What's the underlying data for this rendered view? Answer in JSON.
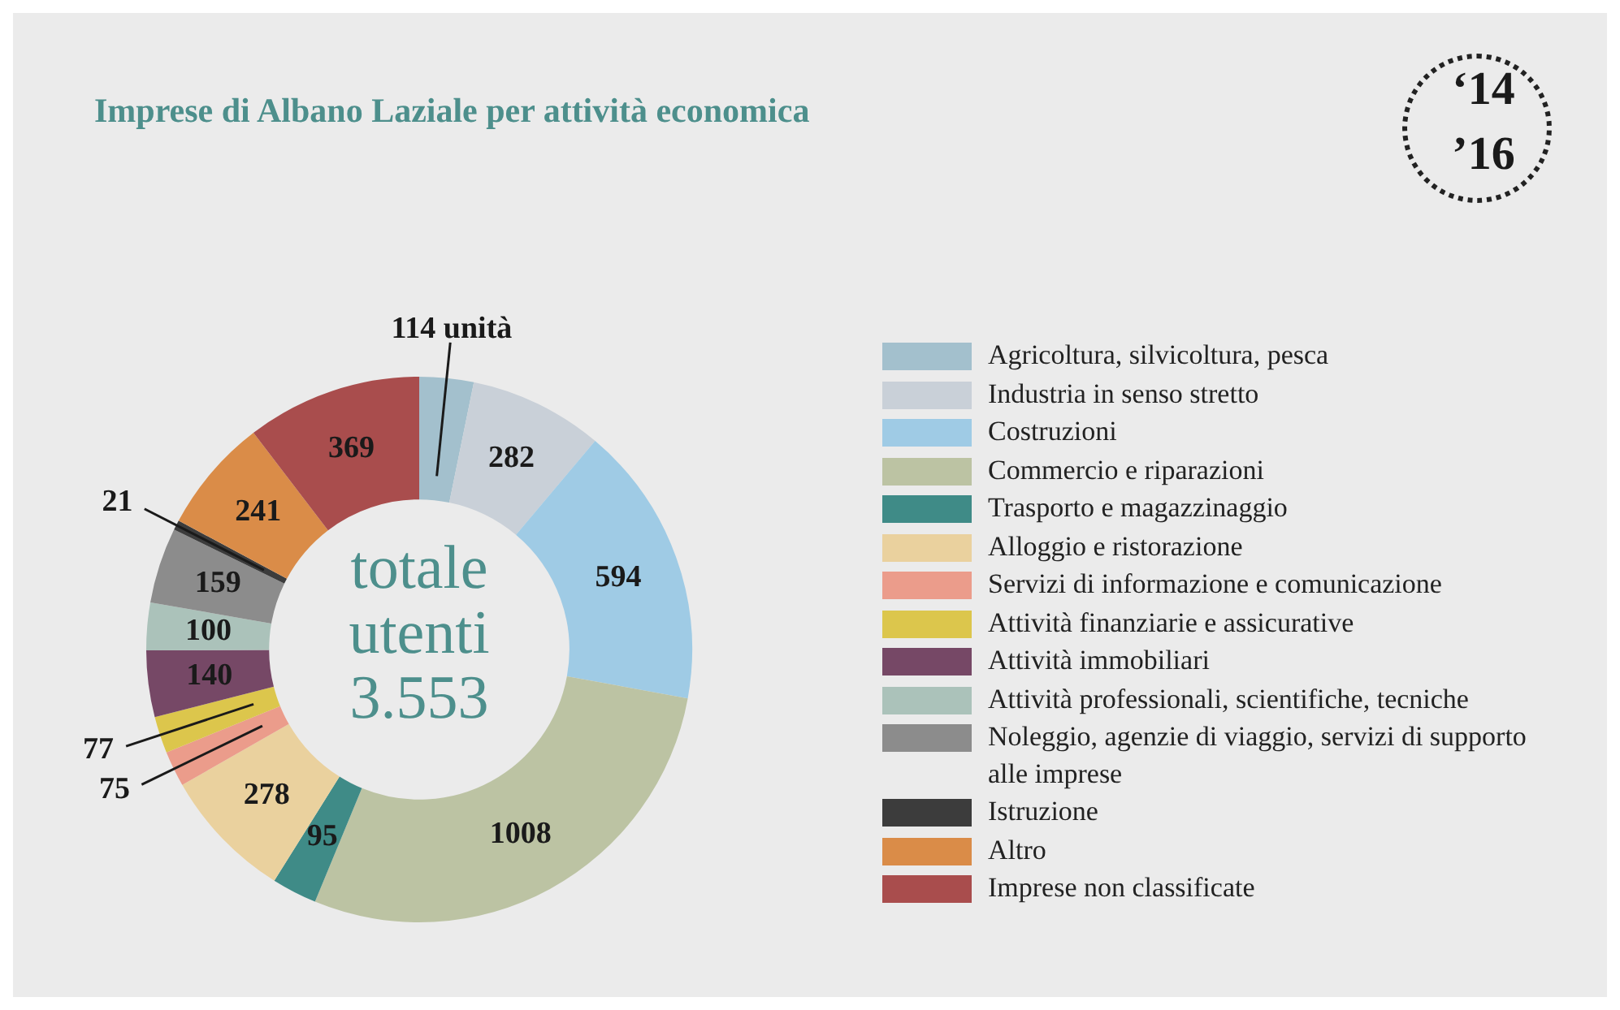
{
  "chart_data": {
    "type": "donut",
    "title": "Imprese di Albano Laziale per attività economica",
    "categories": [
      "Agricoltura, silvicoltura, pesca",
      "Industria in senso stretto",
      "Costruzioni",
      "Commercio e riparazioni",
      "Trasporto e magazzinaggio",
      "Alloggio e ristorazione",
      "Servizi di informazione e comunicazione",
      "Attività finanziarie e assicurative",
      "Attività immobiliari",
      "Attività professionali, scientifiche, tecniche",
      "Noleggio, agenzie di viaggio, servizi di supporto alle imprese",
      "Istruzione",
      "Altro",
      "Imprese non classificate"
    ],
    "values": [
      114,
      282,
      594,
      1008,
      95,
      278,
      75,
      77,
      140,
      100,
      159,
      21,
      241,
      369
    ],
    "value_labels": [
      "114 unità",
      "282",
      "594",
      "1008",
      "95",
      "278",
      "75",
      "77",
      "140",
      "100",
      "159",
      "21",
      "241",
      "369"
    ],
    "colors": [
      "#a3c0cd",
      "#c9d0d8",
      "#9fcbe5",
      "#bcc3a3",
      "#3f8b87",
      "#ead19e",
      "#eb9c8b",
      "#dcc64c",
      "#764866",
      "#abc2ba",
      "#8c8c8c",
      "#3c3c3c",
      "#da8c48",
      "#a94d4d"
    ],
    "legend": "right",
    "annotations": [
      "totale utenti 3.553",
      "‘14",
      "’16"
    ]
  }
}
